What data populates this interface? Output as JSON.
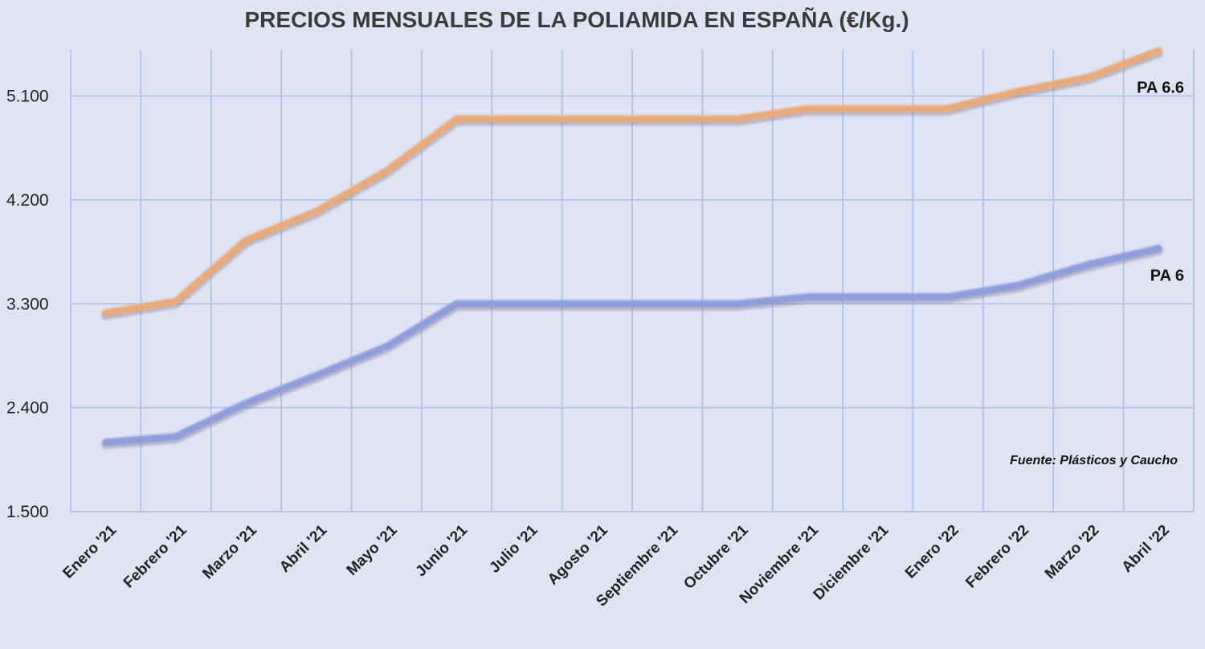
{
  "chart_data": {
    "type": "line",
    "title": "PRECIOS MENSUALES DE LA POLIAMIDA EN ESPAÑA (€/Kg.)",
    "categories": [
      "Enero '21",
      "Febrero '21",
      "Marzo '21",
      "Abril '21",
      "Mayo '21",
      "Junio '21",
      "Julio '21",
      "Agosto '21",
      "Septiembre '21",
      "Octubre '21",
      "Noviembre '21",
      "Diciembre '21",
      "Enero '22",
      "Febrero '22",
      "Marzo '22",
      "Abril '22"
    ],
    "series": [
      {
        "name": "PA 6.6",
        "color": "#e9a97a",
        "values": [
          3.22,
          3.32,
          3.85,
          4.1,
          4.45,
          4.9,
          4.9,
          4.9,
          4.9,
          4.9,
          4.99,
          4.99,
          4.99,
          5.14,
          5.26,
          5.49
        ]
      },
      {
        "name": "PA 6",
        "color": "#8f9ddb",
        "values": [
          2.1,
          2.15,
          2.44,
          2.68,
          2.93,
          3.3,
          3.3,
          3.3,
          3.3,
          3.3,
          3.36,
          3.36,
          3.36,
          3.46,
          3.64,
          3.78
        ]
      }
    ],
    "y_ticks": [
      "1.500",
      "2.400",
      "3.300",
      "4.200",
      "5.100"
    ],
    "y_tick_values": [
      1.5,
      2.4,
      3.3,
      4.2,
      5.1
    ],
    "ylim": [
      1.5,
      5.5
    ],
    "grid": true,
    "source_note": "Fuente: Plásticos y Caucho"
  }
}
